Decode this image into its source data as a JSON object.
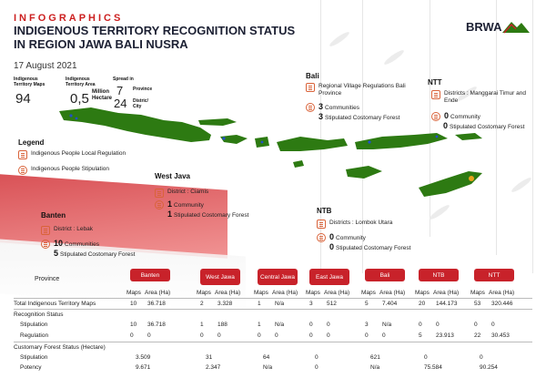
{
  "header": {
    "infographics": "INFOGRAPHICS",
    "title_line1": "INDIGENOUS TERRITORY RECOGNITION STATUS",
    "title_line2": "IN REGION JAWA BALI NUSRA",
    "date": "17 August 2021"
  },
  "stats": {
    "maps_label": "Indigenous Territory Maps",
    "maps_value": "94",
    "area_label": "Indigenous Territory Area",
    "area_value": "0,5",
    "area_unit": "Million Hectare",
    "spread_label": "Spread in",
    "province_value": "7",
    "province_label": "Province",
    "district_value": "24",
    "district_label": "Distric/ City"
  },
  "logo": {
    "text": "BRWA"
  },
  "legend": {
    "title": "Legend",
    "local_regulation": "Indigenous People Local Regulation",
    "stipulation": "Indigenous People Stipulation"
  },
  "bali": {
    "title": "Bali",
    "line1": "Regional Village Regulations Bali Province",
    "communities_num": "3",
    "communities_label": "Communities",
    "forest_num": "3",
    "forest_label": "Stipulated Costomary Forest"
  },
  "ntt": {
    "title": "NTT",
    "district": "Districts : Manggarai Timur and Ende",
    "communities_num": "0",
    "communities_label": "Community",
    "forest_num": "0",
    "forest_label": "Stipulated Costomary Forest"
  },
  "west_java": {
    "title": "West Java",
    "district": "District : Ciamis",
    "communities_num": "1",
    "communities_label": "Community",
    "forest_num": "1",
    "forest_label": "Stipulated Costomary Forest"
  },
  "ntb": {
    "title": "NTB",
    "district": "Districts : Lombok Utara",
    "communities_num": "0",
    "communities_label": "Community",
    "forest_num": "0",
    "forest_label": "Stipulated Costomary Forest"
  },
  "banten": {
    "title": "Banten",
    "district": "District : Lebak",
    "communities_num": "10",
    "communities_label": "Communities",
    "forest_num": "5",
    "forest_label": "Stipulated Costomary Forest"
  },
  "table": {
    "province_label": "Province",
    "provinces": [
      "Banten",
      "West Jawa",
      "Central Jawa",
      "East Jawa",
      "Bali",
      "NTB",
      "NTT"
    ],
    "maps_h": "Maps",
    "area_h": "Area (Ha)",
    "total_label": "Total Indigenous Territory Maps",
    "total": [
      [
        "10",
        "36.718"
      ],
      [
        "2",
        "3.328"
      ],
      [
        "1",
        "N/a"
      ],
      [
        "3",
        "512"
      ],
      [
        "5",
        "7.404"
      ],
      [
        "20",
        "144.173"
      ],
      [
        "53",
        "320.446"
      ]
    ],
    "recognition_label": "Recognition Status",
    "stipulation_label": "Stipulation",
    "stipulation": [
      [
        "10",
        "36.718"
      ],
      [
        "1",
        "188"
      ],
      [
        "1",
        "N/a"
      ],
      [
        "0",
        "0"
      ],
      [
        "3",
        "N/a"
      ],
      [
        "0",
        "0"
      ],
      [
        "0",
        "0"
      ]
    ],
    "regulation_label": "Regulation",
    "regulation": [
      [
        "0",
        "0"
      ],
      [
        "0",
        "0"
      ],
      [
        "0",
        "0"
      ],
      [
        "0",
        "0"
      ],
      [
        "0",
        "0"
      ],
      [
        "5",
        "23.913"
      ],
      [
        "22",
        "30.453"
      ]
    ],
    "forest_status_label": "Customary Forest Status (Hectare)",
    "forest_stipulation_label": "Stipulation",
    "forest_stipulation": [
      "3.509",
      "31",
      "64",
      "0",
      "621",
      "0",
      "0"
    ],
    "potency_label": "Potency",
    "potency": [
      "9.671",
      "2.347",
      "N/a",
      "0",
      "N/a",
      "75.584",
      "90.254"
    ]
  },
  "colors": {
    "accent_red": "#c8222a",
    "title_navy": "#1c2033",
    "map_green": "#2d7a12",
    "icon_orange": "#d9633a"
  }
}
